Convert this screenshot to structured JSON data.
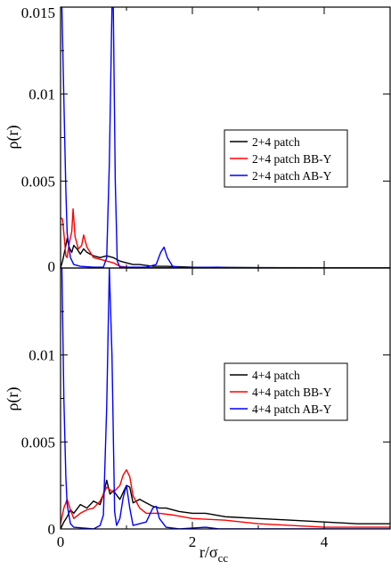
{
  "chart_data": [
    {
      "type": "line",
      "title": "",
      "xlabel": "",
      "ylabel": "ρ(r)",
      "xlim": [
        0,
        5
      ],
      "ylim": [
        0,
        0.015
      ],
      "yticks": [
        "0",
        "0.005",
        "0.01",
        "0.015"
      ],
      "xticks": [],
      "legend": "right-middle",
      "series": [
        {
          "name": "2+4 patch",
          "color": "#000000",
          "points": [
            [
              0,
              0
            ],
            [
              0.03,
              0.0004
            ],
            [
              0.07,
              0.0011
            ],
            [
              0.1,
              0.0017
            ],
            [
              0.13,
              0.0012
            ],
            [
              0.17,
              0.0009
            ],
            [
              0.2,
              0.0013
            ],
            [
              0.25,
              0.0011
            ],
            [
              0.3,
              0.0008
            ],
            [
              0.35,
              0.0011
            ],
            [
              0.4,
              0.0009
            ],
            [
              0.5,
              0.0007
            ],
            [
              0.6,
              0.0006
            ],
            [
              0.7,
              0.0007
            ],
            [
              0.8,
              0.0006
            ],
            [
              0.9,
              0.0004
            ],
            [
              1.0,
              0.0003
            ],
            [
              1.1,
              0.0002
            ],
            [
              1.2,
              0.0002
            ],
            [
              1.4,
              0.0001
            ],
            [
              1.6,
              0.0001
            ],
            [
              2.0,
              5e-05
            ],
            [
              3.0,
              2e-05
            ],
            [
              5.0,
              1e-05
            ]
          ]
        },
        {
          "name": "2+4 patch BB-Y",
          "color": "#ff0000",
          "points": [
            [
              0,
              0.0029
            ],
            [
              0.03,
              0.0028
            ],
            [
              0.06,
              0.0016
            ],
            [
              0.08,
              0.0007
            ],
            [
              0.1,
              0.0006
            ],
            [
              0.13,
              0.0014
            ],
            [
              0.17,
              0.0021
            ],
            [
              0.19,
              0.0034
            ],
            [
              0.22,
              0.0018
            ],
            [
              0.27,
              0.0011
            ],
            [
              0.32,
              0.0013
            ],
            [
              0.35,
              0.0019
            ],
            [
              0.4,
              0.0012
            ],
            [
              0.5,
              0.0006
            ],
            [
              0.6,
              0.0005
            ],
            [
              0.7,
              0.0004
            ],
            [
              0.8,
              0.0003
            ],
            [
              0.9,
              0.0001
            ],
            [
              1.0,
              5e-05
            ],
            [
              1.2,
              2e-05
            ],
            [
              2.0,
              1e-05
            ],
            [
              5.0,
              0
            ]
          ]
        },
        {
          "name": "2+4 patch AB-Y",
          "color": "#0000ff",
          "points": [
            [
              0,
              0.015
            ],
            [
              0.02,
              0.015
            ],
            [
              0.05,
              0.0097
            ],
            [
              0.08,
              0.0045
            ],
            [
              0.1,
              0.002
            ],
            [
              0.15,
              0.0006
            ],
            [
              0.2,
              0.0002
            ],
            [
              0.3,
              0.0001
            ],
            [
              0.5,
              5e-05
            ],
            [
              0.65,
              5e-05
            ],
            [
              0.7,
              0.0006
            ],
            [
              0.74,
              0.006
            ],
            [
              0.78,
              0.015
            ],
            [
              0.8,
              0.015
            ],
            [
              0.83,
              0.005
            ],
            [
              0.86,
              0.0004
            ],
            [
              0.9,
              5e-05
            ],
            [
              1.3,
              5e-05
            ],
            [
              1.45,
              0.0002
            ],
            [
              1.52,
              0.0009
            ],
            [
              1.57,
              0.0012
            ],
            [
              1.62,
              0.0006
            ],
            [
              1.7,
              0.0001
            ],
            [
              1.8,
              2e-05
            ],
            [
              2.4,
              5e-05
            ],
            [
              2.5,
              2e-05
            ],
            [
              5.0,
              0
            ]
          ]
        }
      ]
    },
    {
      "type": "line",
      "title": "",
      "xlabel": "r/σ",
      "xlabel_sub": "cc",
      "ylabel": "ρ(r)",
      "xlim": [
        0,
        5
      ],
      "ylim": [
        0,
        0.015
      ],
      "yticks": [
        "0",
        "0.005",
        "0.01"
      ],
      "xticks": [
        "0",
        "2",
        "4"
      ],
      "legend": "right-middle",
      "series": [
        {
          "name": "4+4 patch",
          "color": "#000000",
          "points": [
            [
              0,
              0
            ],
            [
              0.05,
              0.0004
            ],
            [
              0.1,
              0.0007
            ],
            [
              0.15,
              0.0011
            ],
            [
              0.2,
              0.0009
            ],
            [
              0.3,
              0.0014
            ],
            [
              0.4,
              0.0012
            ],
            [
              0.5,
              0.0016
            ],
            [
              0.6,
              0.0014
            ],
            [
              0.65,
              0.002
            ],
            [
              0.7,
              0.0028
            ],
            [
              0.75,
              0.002
            ],
            [
              0.8,
              0.0022
            ],
            [
              0.9,
              0.0017
            ],
            [
              0.95,
              0.0021
            ],
            [
              1.0,
              0.0025
            ],
            [
              1.05,
              0.0024
            ],
            [
              1.1,
              0.0015
            ],
            [
              1.2,
              0.0017
            ],
            [
              1.3,
              0.0015
            ],
            [
              1.4,
              0.0013
            ],
            [
              1.5,
              0.0012
            ],
            [
              1.6,
              0.0012
            ],
            [
              1.8,
              0.001
            ],
            [
              2.0,
              0.0009
            ],
            [
              2.2,
              0.0009
            ],
            [
              2.5,
              0.0007
            ],
            [
              3.0,
              0.0006
            ],
            [
              3.5,
              0.0005
            ],
            [
              4.0,
              0.0004
            ],
            [
              4.5,
              0.0003
            ],
            [
              5.0,
              0.0003
            ]
          ]
        },
        {
          "name": "4+4 patch BB-Y",
          "color": "#ff0000",
          "points": [
            [
              0,
              0.0003
            ],
            [
              0.05,
              0.0012
            ],
            [
              0.1,
              0.0017
            ],
            [
              0.15,
              0.0011
            ],
            [
              0.2,
              0.0006
            ],
            [
              0.3,
              0.0009
            ],
            [
              0.4,
              0.0011
            ],
            [
              0.5,
              0.0012
            ],
            [
              0.6,
              0.0016
            ],
            [
              0.7,
              0.0024
            ],
            [
              0.8,
              0.0021
            ],
            [
              0.9,
              0.0025
            ],
            [
              0.95,
              0.0031
            ],
            [
              1.0,
              0.0034
            ],
            [
              1.05,
              0.003
            ],
            [
              1.1,
              0.0019
            ],
            [
              1.2,
              0.0012
            ],
            [
              1.3,
              0.0009
            ],
            [
              1.5,
              0.0009
            ],
            [
              1.7,
              0.0008
            ],
            [
              2.0,
              0.0006
            ],
            [
              2.5,
              0.0005
            ],
            [
              3.0,
              0.0003
            ],
            [
              3.5,
              0.0002
            ],
            [
              4.0,
              0.0001
            ],
            [
              5.0,
              0.0001
            ]
          ]
        },
        {
          "name": "4+4 patch AB-Y",
          "color": "#0000ff",
          "points": [
            [
              0,
              0.015
            ],
            [
              0.02,
              0.015
            ],
            [
              0.05,
              0.0075
            ],
            [
              0.08,
              0.003
            ],
            [
              0.1,
              0.0014
            ],
            [
              0.15,
              0.0003
            ],
            [
              0.2,
              0.0001
            ],
            [
              0.5,
              0
            ],
            [
              0.6,
              0.0002
            ],
            [
              0.65,
              0.0008
            ],
            [
              0.7,
              0.007
            ],
            [
              0.74,
              0.015
            ],
            [
              0.78,
              0.01
            ],
            [
              0.82,
              0.001
            ],
            [
              0.85,
              0.0002
            ],
            [
              0.9,
              0.0006
            ],
            [
              0.95,
              0.0018
            ],
            [
              1.0,
              0.0025
            ],
            [
              1.05,
              0.0012
            ],
            [
              1.1,
              0.0002
            ],
            [
              1.3,
              0.0004
            ],
            [
              1.4,
              0.0012
            ],
            [
              1.45,
              0.0013
            ],
            [
              1.5,
              0.0006
            ],
            [
              1.6,
              0.0001
            ],
            [
              1.8,
              0
            ],
            [
              2.2,
              0.0001
            ],
            [
              2.4,
              0
            ],
            [
              5.0,
              0
            ]
          ]
        }
      ]
    }
  ]
}
